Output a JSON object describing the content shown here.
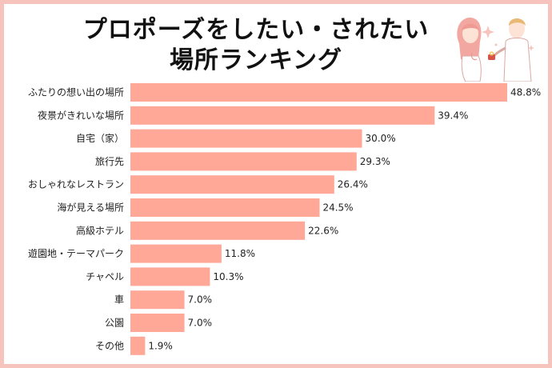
{
  "title_line1": "プロポーズをしたい・されたい",
  "title_line2": "場所ランキング",
  "colors": {
    "bar": "#ffa898",
    "frame": "#f6c3bd"
  },
  "illustration_icon": "couple-proposal-icon",
  "chart_data": {
    "type": "bar",
    "orientation": "horizontal",
    "categories": [
      "ふたりの想い出の場所",
      "夜景がきれいな場所",
      "自宅（家）",
      "旅行先",
      "おしゃれなレストラン",
      "海が見える場所",
      "高級ホテル",
      "遊園地・テーマパーク",
      "チャペル",
      "車",
      "公園",
      "その他"
    ],
    "values": [
      48.8,
      39.4,
      30.0,
      29.3,
      26.4,
      24.5,
      22.6,
      11.8,
      10.3,
      7.0,
      7.0,
      1.9
    ],
    "value_labels": [
      "48.8%",
      "39.4%",
      "30.0%",
      "29.3%",
      "26.4%",
      "24.5%",
      "22.6%",
      "11.8%",
      "10.3%",
      "7.0%",
      "7.0%",
      "1.9%"
    ],
    "xlim": [
      0,
      48.8
    ],
    "grid": false,
    "legend": "none"
  }
}
